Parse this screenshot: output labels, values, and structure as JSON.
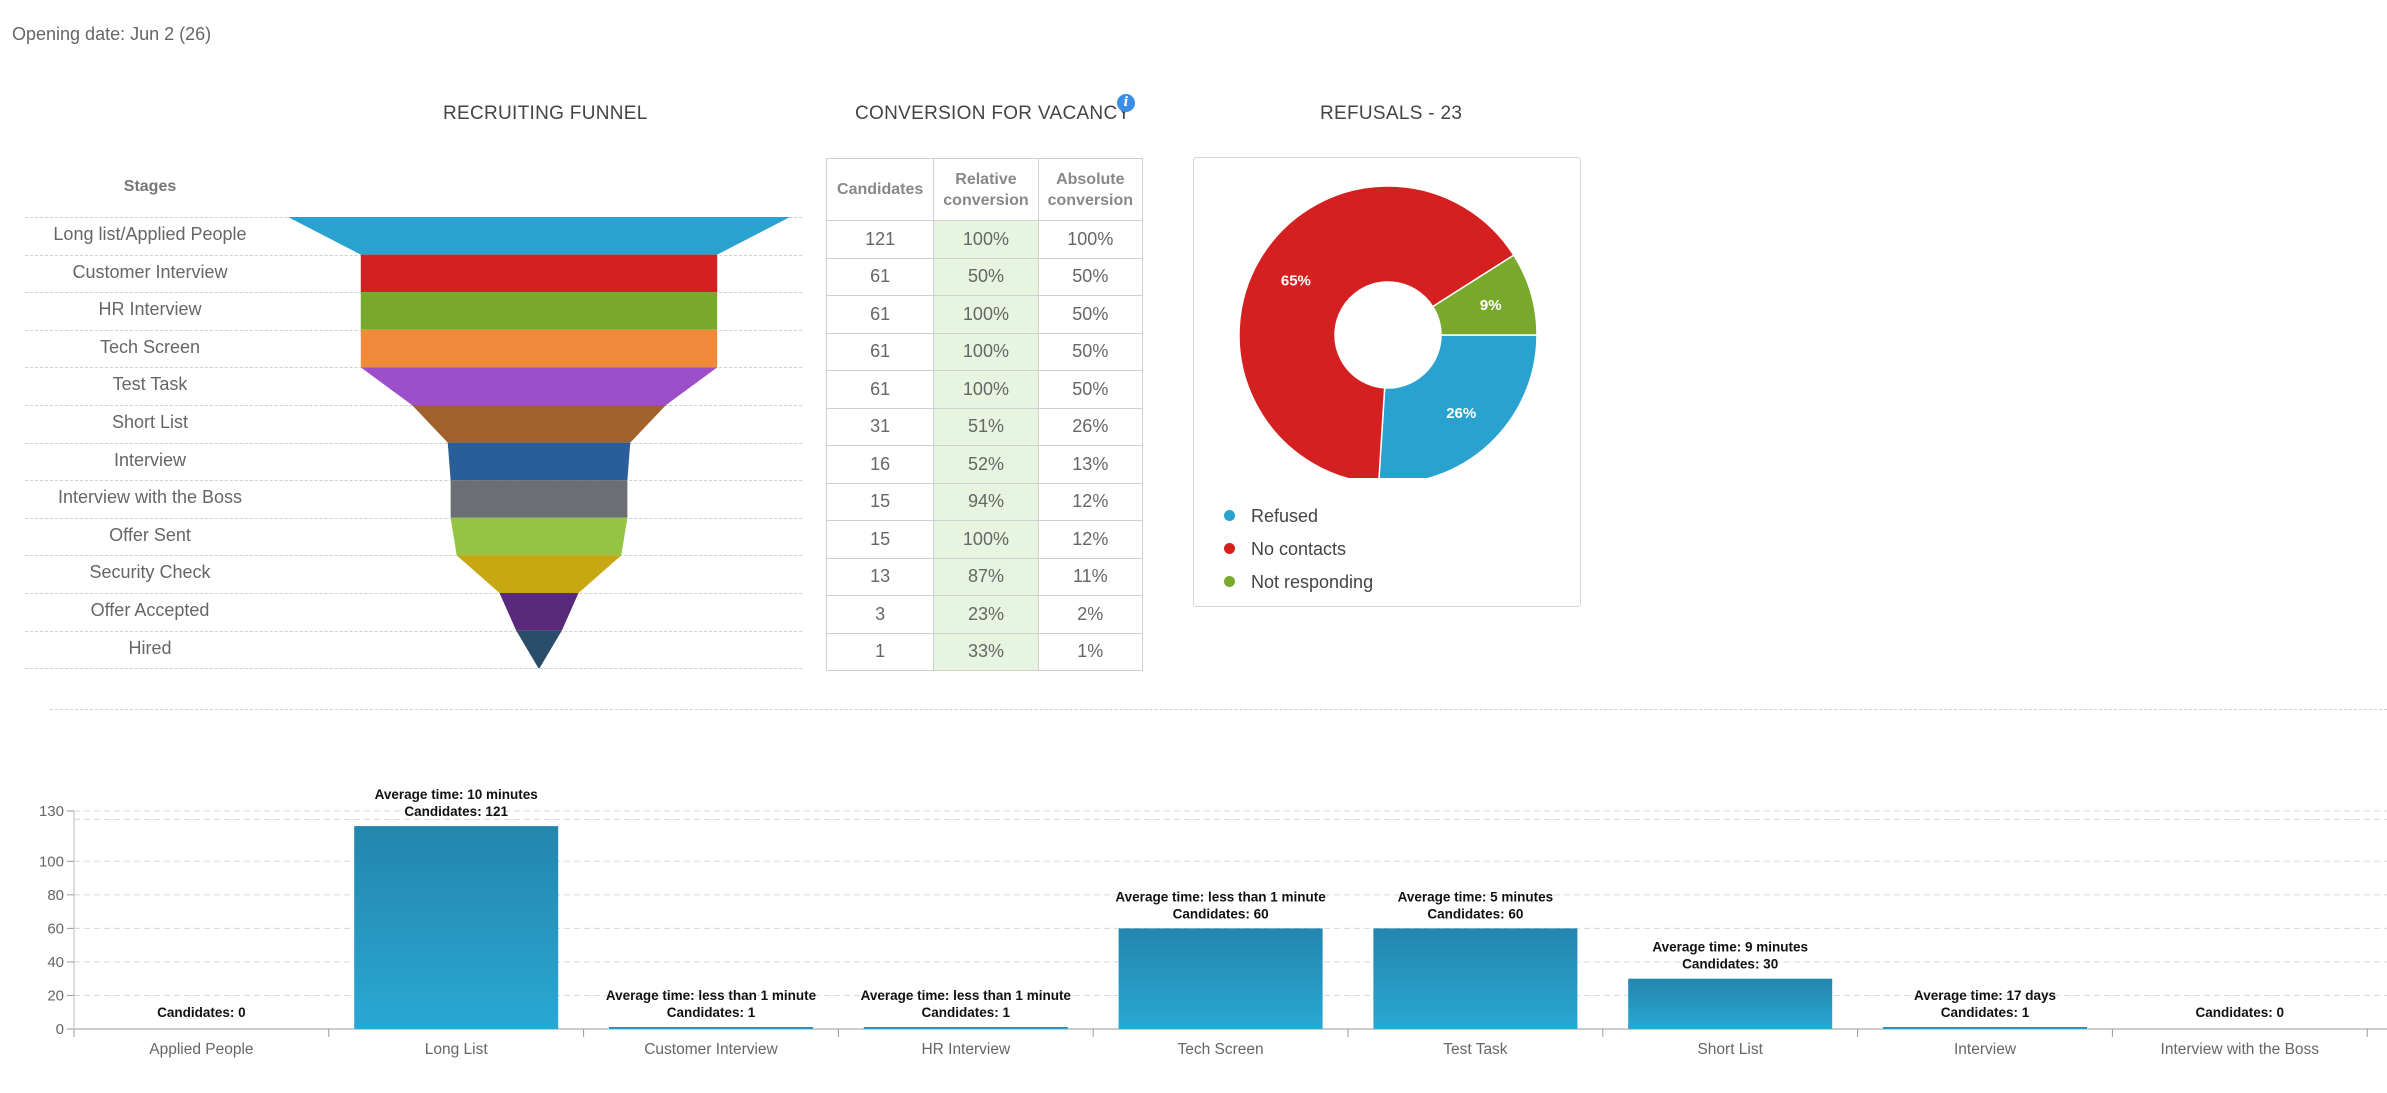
{
  "opening_date": "Opening date: Jun 2 (26)",
  "funnel": {
    "title": "RECRUITING FUNNEL",
    "stages_header": "Stages",
    "stages": [
      {
        "label": "Long list/Applied People",
        "value": 121,
        "color": "#2aa2d0"
      },
      {
        "label": "Customer Interview",
        "value": 61,
        "color": "#d42020"
      },
      {
        "label": "HR Interview",
        "value": 61,
        "color": "#78a92c"
      },
      {
        "label": "Tech Screen",
        "value": 61,
        "color": "#f0893a"
      },
      {
        "label": "Test Task",
        "value": 61,
        "color": "#9c4fc8"
      },
      {
        "label": "Short List",
        "value": 31,
        "color": "#a0622a"
      },
      {
        "label": "Interview",
        "value": 16,
        "color": "#2a5e9a"
      },
      {
        "label": "Interview with the Boss",
        "value": 15,
        "color": "#6b6e72"
      },
      {
        "label": "Offer Sent",
        "value": 15,
        "color": "#95c443"
      },
      {
        "label": "Security Check",
        "value": 13,
        "color": "#c8a812"
      },
      {
        "label": "Offer Accepted",
        "value": 3,
        "color": "#5a2a7a"
      },
      {
        "label": "Hired",
        "value": 1,
        "color": "#2a4e6a"
      }
    ]
  },
  "conversion": {
    "title": "CONVERSION FOR VACANCY",
    "info_icon": "info-icon",
    "headers": [
      "Candidates",
      "Relative conversion",
      "Absolute conversion"
    ],
    "rows": [
      [
        "121",
        "100%",
        "100%"
      ],
      [
        "61",
        "50%",
        "50%"
      ],
      [
        "61",
        "100%",
        "50%"
      ],
      [
        "61",
        "100%",
        "50%"
      ],
      [
        "61",
        "100%",
        "50%"
      ],
      [
        "31",
        "51%",
        "26%"
      ],
      [
        "16",
        "52%",
        "13%"
      ],
      [
        "15",
        "94%",
        "12%"
      ],
      [
        "15",
        "100%",
        "12%"
      ],
      [
        "13",
        "87%",
        "11%"
      ],
      [
        "3",
        "23%",
        "2%"
      ],
      [
        "1",
        "33%",
        "1%"
      ]
    ]
  },
  "refusals": {
    "title": "REFUSALS - 23",
    "slices": [
      {
        "name": "Refused",
        "percent": 26,
        "label": "26%",
        "color": "#2aa2d0"
      },
      {
        "name": "No contacts",
        "percent": 65,
        "label": "65%",
        "color": "#d42020"
      },
      {
        "name": "Not responding",
        "percent": 9,
        "label": "9%",
        "color": "#78a92c"
      }
    ]
  },
  "chart_data": {
    "type": "bar",
    "categories": [
      "Applied People",
      "Long List",
      "Customer Interview",
      "HR Interview",
      "Tech Screen",
      "Test Task",
      "Short List",
      "Interview",
      "Interview with the Boss"
    ],
    "values": [
      0,
      121,
      1,
      1,
      60,
      60,
      30,
      1,
      0
    ],
    "bar_labels": [
      [
        "Candidates: 0"
      ],
      [
        "Average time: 10 minutes",
        "Candidates: 121"
      ],
      [
        "Average time: less than 1 minute",
        "Candidates: 1"
      ],
      [
        "Average time: less than 1 minute",
        "Candidates: 1"
      ],
      [
        "Average time: less than 1 minute",
        "Candidates: 60"
      ],
      [
        "Average time: 5 minutes",
        "Candidates: 60"
      ],
      [
        "Average time: 9 minutes",
        "Candidates: 30"
      ],
      [
        "Average time: 17 days",
        "Candidates: 1"
      ],
      [
        "Candidates: 0"
      ]
    ],
    "yticks": [
      0,
      20,
      40,
      60,
      80,
      100,
      130
    ],
    "ylim": [
      0,
      130
    ],
    "grid": true,
    "bar_color": "#2693bd"
  }
}
